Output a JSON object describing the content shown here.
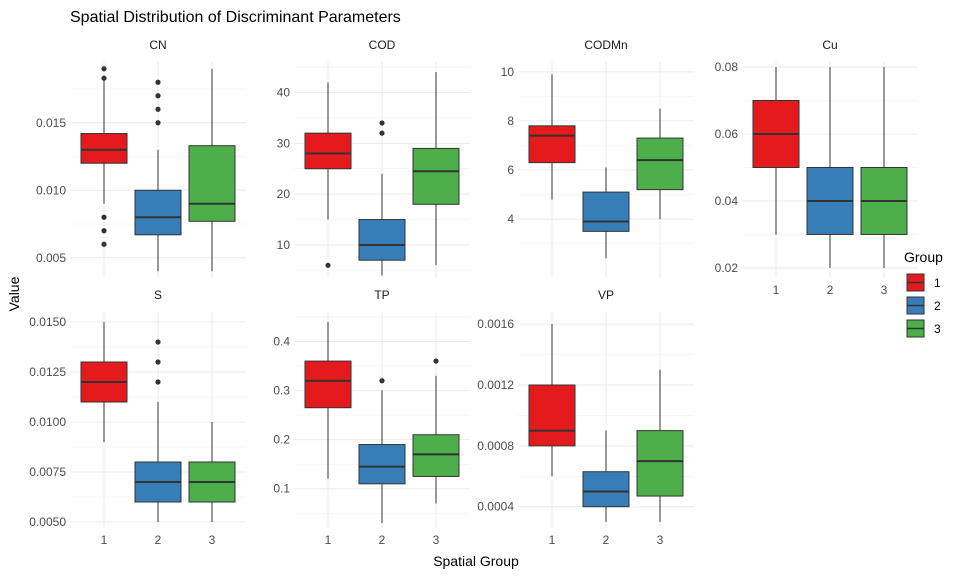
{
  "chart_data": {
    "type": "boxplot",
    "title": "Spatial Distribution of Discriminant Parameters",
    "xlabel": "Spatial Group",
    "ylabel": "Value",
    "categories": [
      "1",
      "2",
      "3"
    ],
    "legend": {
      "title": "Group",
      "placement": "right",
      "items": [
        {
          "label": "1",
          "color": "#E41A1C"
        },
        {
          "label": "2",
          "color": "#377EB8"
        },
        {
          "label": "3",
          "color": "#4DAF4A"
        }
      ]
    },
    "grid": true,
    "facets": [
      {
        "name": "CN",
        "ylim": [
          0.0035,
          0.0195
        ],
        "yticks": [
          0.005,
          0.01,
          0.015
        ],
        "yticklabels": [
          "0.005",
          "0.010",
          "0.015"
        ],
        "boxes": [
          {
            "group": "1",
            "min": 0.009,
            "q1": 0.012,
            "median": 0.013,
            "q3": 0.0142,
            "max": 0.0185,
            "outliers": [
              0.019,
              0.0183,
              0.008,
              0.007,
              0.006
            ]
          },
          {
            "group": "2",
            "min": 0.004,
            "q1": 0.0067,
            "median": 0.008,
            "q3": 0.01,
            "max": 0.013,
            "outliers": [
              0.018,
              0.017,
              0.016,
              0.015
            ]
          },
          {
            "group": "3",
            "min": 0.004,
            "q1": 0.0077,
            "median": 0.009,
            "q3": 0.0133,
            "max": 0.019,
            "outliers": []
          }
        ]
      },
      {
        "name": "COD",
        "ylim": [
          3.5,
          46
        ],
        "yticks": [
          10,
          20,
          30,
          40
        ],
        "yticklabels": [
          "10",
          "20",
          "30",
          "40"
        ],
        "boxes": [
          {
            "group": "1",
            "min": 15,
            "q1": 25,
            "median": 28,
            "q3": 32,
            "max": 42,
            "outliers": [
              6
            ]
          },
          {
            "group": "2",
            "min": 4,
            "q1": 7,
            "median": 10,
            "q3": 15,
            "max": 24,
            "outliers": [
              34,
              32
            ]
          },
          {
            "group": "3",
            "min": 6,
            "q1": 18,
            "median": 24.5,
            "q3": 29,
            "max": 44,
            "outliers": []
          }
        ]
      },
      {
        "name": "CODMn",
        "ylim": [
          1.6,
          10.4
        ],
        "yticks": [
          4,
          6,
          8,
          10
        ],
        "yticklabels": [
          "4",
          "6",
          "8",
          "10"
        ],
        "boxes": [
          {
            "group": "1",
            "min": 4.8,
            "q1": 6.3,
            "median": 7.4,
            "q3": 7.8,
            "max": 9.9,
            "outliers": []
          },
          {
            "group": "2",
            "min": 2.4,
            "q1": 3.5,
            "median": 3.9,
            "q3": 5.1,
            "max": 6.1,
            "outliers": []
          },
          {
            "group": "3",
            "min": 4,
            "q1": 5.2,
            "median": 6.4,
            "q3": 7.3,
            "max": 8.5,
            "outliers": []
          }
        ]
      },
      {
        "name": "Cu",
        "ylim": [
          0.017,
          0.0815
        ],
        "yticks": [
          0.02,
          0.04,
          0.06,
          0.08
        ],
        "yticklabels": [
          "0.02",
          "0.04",
          "0.06",
          "0.08"
        ],
        "boxes": [
          {
            "group": "1",
            "min": 0.03,
            "q1": 0.05,
            "median": 0.06,
            "q3": 0.07,
            "max": 0.08,
            "outliers": []
          },
          {
            "group": "2",
            "min": 0.02,
            "q1": 0.03,
            "median": 0.04,
            "q3": 0.05,
            "max": 0.08,
            "outliers": []
          },
          {
            "group": "3",
            "min": 0.02,
            "q1": 0.03,
            "median": 0.04,
            "q3": 0.05,
            "max": 0.08,
            "outliers": []
          }
        ]
      },
      {
        "name": "S",
        "ylim": [
          0.0047,
          0.0155
        ],
        "yticks": [
          0.005,
          0.0075,
          0.01,
          0.0125,
          0.015
        ],
        "yticklabels": [
          "0.0050",
          "0.0075",
          "0.0100",
          "0.0125",
          "0.0150"
        ],
        "boxes": [
          {
            "group": "1",
            "min": 0.009,
            "q1": 0.011,
            "median": 0.012,
            "q3": 0.013,
            "max": 0.015,
            "outliers": []
          },
          {
            "group": "2",
            "min": 0.005,
            "q1": 0.006,
            "median": 0.007,
            "q3": 0.008,
            "max": 0.011,
            "outliers": [
              0.014,
              0.013,
              0.012
            ]
          },
          {
            "group": "3",
            "min": 0.005,
            "q1": 0.006,
            "median": 0.007,
            "q3": 0.008,
            "max": 0.01,
            "outliers": []
          }
        ]
      },
      {
        "name": "TP",
        "ylim": [
          0.02,
          0.46
        ],
        "yticks": [
          0.1,
          0.2,
          0.3,
          0.4
        ],
        "yticklabels": [
          "0.1",
          "0.2",
          "0.3",
          "0.4"
        ],
        "boxes": [
          {
            "group": "1",
            "min": 0.12,
            "q1": 0.265,
            "median": 0.32,
            "q3": 0.36,
            "max": 0.44,
            "outliers": []
          },
          {
            "group": "2",
            "min": 0.03,
            "q1": 0.11,
            "median": 0.145,
            "q3": 0.19,
            "max": 0.3,
            "outliers": [
              0.32
            ]
          },
          {
            "group": "3",
            "min": 0.07,
            "q1": 0.125,
            "median": 0.17,
            "q3": 0.21,
            "max": 0.33,
            "outliers": [
              0.36
            ]
          }
        ]
      },
      {
        "name": "VP",
        "ylim": [
          0.00026,
          0.00168
        ],
        "yticks": [
          0.0004,
          0.0008,
          0.0012,
          0.0016
        ],
        "yticklabels": [
          "0.0004",
          "0.0008",
          "0.0012",
          "0.0016"
        ],
        "boxes": [
          {
            "group": "1",
            "min": 0.0006,
            "q1": 0.0008,
            "median": 0.0009,
            "q3": 0.0012,
            "max": 0.0016,
            "outliers": []
          },
          {
            "group": "2",
            "min": 0.0003,
            "q1": 0.0004,
            "median": 0.0005,
            "q3": 0.00063,
            "max": 0.0009,
            "outliers": []
          },
          {
            "group": "3",
            "min": 0.0003,
            "q1": 0.00047,
            "median": 0.0007,
            "q3": 0.0009,
            "max": 0.0013,
            "outliers": []
          }
        ]
      }
    ]
  }
}
